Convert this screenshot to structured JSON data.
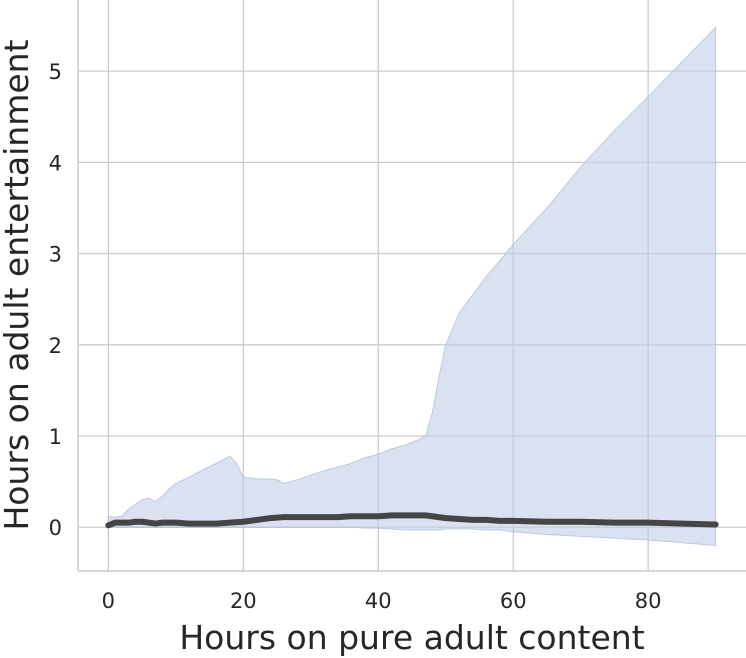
{
  "chart_data": {
    "type": "line",
    "xlabel": "Hours on pure adult content",
    "ylabel": "Hours on adult entertainment",
    "xlim": [
      -4.5,
      94.5
    ],
    "ylim": [
      -0.48,
      5.78
    ],
    "xticks": [
      0,
      20,
      40,
      60,
      80
    ],
    "yticks": [
      0,
      1,
      2,
      3,
      4,
      5
    ],
    "grid": true,
    "colors": {
      "line": "#454545",
      "band": "#c2cde6",
      "band_edge": "#aab9dc",
      "grid": "#cccccc",
      "spine": "#cccccc"
    },
    "series": [
      {
        "x": [
          0,
          1,
          2,
          3,
          4,
          5,
          6,
          7,
          8,
          9,
          10,
          12,
          14,
          16,
          18,
          20,
          22,
          24,
          26,
          28,
          30,
          32,
          34,
          36,
          38,
          40,
          42,
          44,
          46,
          47,
          48,
          50,
          52,
          54,
          56,
          58,
          60,
          65,
          70,
          75,
          80,
          85,
          90
        ],
        "y": [
          0.02,
          0.05,
          0.05,
          0.05,
          0.06,
          0.06,
          0.05,
          0.04,
          0.05,
          0.05,
          0.05,
          0.04,
          0.04,
          0.04,
          0.05,
          0.06,
          0.08,
          0.1,
          0.11,
          0.11,
          0.11,
          0.11,
          0.11,
          0.12,
          0.12,
          0.12,
          0.13,
          0.13,
          0.13,
          0.13,
          0.12,
          0.1,
          0.09,
          0.08,
          0.08,
          0.07,
          0.07,
          0.06,
          0.06,
          0.05,
          0.05,
          0.04,
          0.03
        ]
      }
    ],
    "confidence_band": {
      "x": [
        0,
        1,
        2,
        3,
        4,
        5,
        6,
        7,
        8,
        9,
        10,
        12,
        14,
        16,
        18,
        19,
        20,
        22,
        24,
        25,
        26,
        28,
        30,
        32,
        34,
        36,
        38,
        40,
        42,
        44,
        46,
        47,
        48,
        49,
        50,
        52,
        54,
        56,
        58,
        60,
        65,
        70,
        75,
        80,
        85,
        90
      ],
      "upper": [
        0.12,
        0.11,
        0.12,
        0.2,
        0.25,
        0.3,
        0.32,
        0.28,
        0.34,
        0.42,
        0.48,
        0.55,
        0.63,
        0.7,
        0.78,
        0.7,
        0.55,
        0.53,
        0.53,
        0.52,
        0.48,
        0.52,
        0.57,
        0.62,
        0.66,
        0.7,
        0.76,
        0.8,
        0.86,
        0.9,
        0.96,
        1.0,
        1.25,
        1.65,
        2.0,
        2.35,
        2.55,
        2.75,
        2.92,
        3.1,
        3.5,
        3.95,
        4.35,
        4.72,
        5.1,
        5.48
      ],
      "lower": [
        0.0,
        0.0,
        0.0,
        0.0,
        0.0,
        0.0,
        0.0,
        0.0,
        0.0,
        0.0,
        0.0,
        0.0,
        0.0,
        0.0,
        0.0,
        0.0,
        0.0,
        0.0,
        0.0,
        0.0,
        0.0,
        0.0,
        0.0,
        0.0,
        0.0,
        0.0,
        -0.01,
        -0.01,
        -0.02,
        -0.03,
        -0.03,
        -0.03,
        -0.03,
        -0.03,
        -0.02,
        -0.02,
        -0.02,
        -0.03,
        -0.03,
        -0.05,
        -0.08,
        -0.1,
        -0.12,
        -0.14,
        -0.17,
        -0.2
      ]
    }
  }
}
